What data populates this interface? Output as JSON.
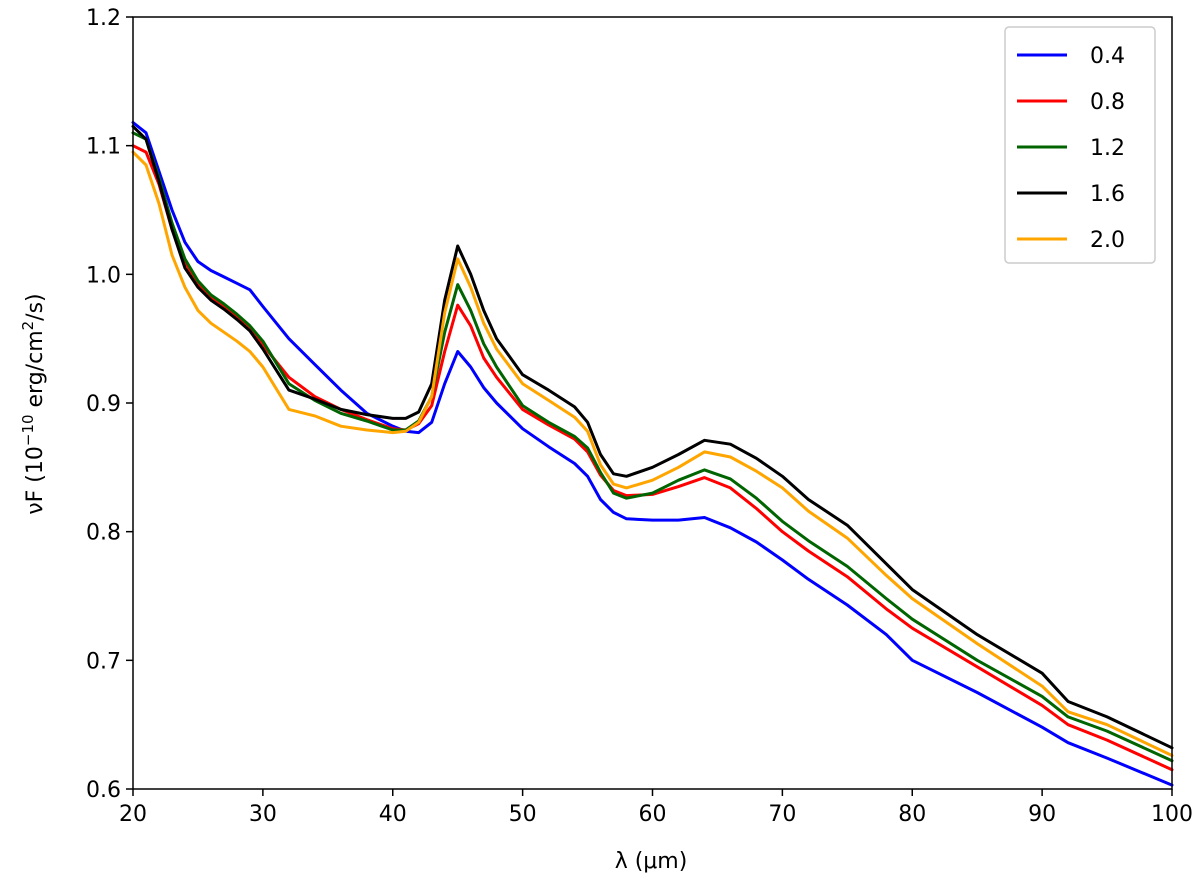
{
  "chart_data": {
    "type": "line",
    "title": "",
    "xlabel": "λ (μm)",
    "ylabel_main": "νF (10",
    "ylabel_exp": "−10",
    "ylabel_mid": " erg/cm",
    "ylabel_exp2": "2",
    "ylabel_end": "/s)",
    "xlim": [
      20,
      100
    ],
    "ylim": [
      0.6,
      1.2
    ],
    "xticks": [
      20,
      30,
      40,
      50,
      60,
      70,
      80,
      90,
      100
    ],
    "xtick_labels": [
      "20",
      "30",
      "40",
      "50",
      "60",
      "70",
      "80",
      "90",
      "100"
    ],
    "yticks": [
      0.6,
      0.7,
      0.8,
      0.9,
      1.0,
      1.1,
      1.2
    ],
    "ytick_labels": [
      "0.6",
      "0.7",
      "0.8",
      "0.9",
      "1.0",
      "1.1",
      "1.2"
    ],
    "grid": false,
    "legend_position": "top-right",
    "series": [
      {
        "name": "0.4",
        "color": "#0000ff",
        "x": [
          20,
          21,
          22,
          23,
          24,
          25,
          26,
          27,
          28,
          29,
          30,
          32,
          34,
          36,
          38,
          40,
          41,
          42,
          43,
          44,
          45,
          46,
          47,
          48,
          50,
          52,
          54,
          55,
          56,
          57,
          58,
          60,
          62,
          64,
          66,
          68,
          70,
          72,
          75,
          78,
          80,
          85,
          90,
          92,
          95,
          100
        ],
        "y": [
          1.118,
          1.11,
          1.08,
          1.05,
          1.025,
          1.01,
          1.003,
          0.998,
          0.993,
          0.988,
          0.975,
          0.95,
          0.93,
          0.91,
          0.892,
          0.882,
          0.878,
          0.877,
          0.885,
          0.915,
          0.94,
          0.928,
          0.912,
          0.9,
          0.88,
          0.866,
          0.853,
          0.843,
          0.825,
          0.815,
          0.81,
          0.809,
          0.809,
          0.811,
          0.803,
          0.792,
          0.778,
          0.763,
          0.743,
          0.72,
          0.7,
          0.675,
          0.648,
          0.636,
          0.624,
          0.603
        ]
      },
      {
        "name": "0.8",
        "color": "#ff0000",
        "x": [
          20,
          21,
          22,
          23,
          24,
          25,
          26,
          27,
          28,
          29,
          30,
          32,
          34,
          36,
          38,
          40,
          41,
          42,
          43,
          44,
          45,
          46,
          47,
          48,
          50,
          52,
          54,
          55,
          56,
          57,
          58,
          60,
          62,
          64,
          66,
          68,
          70,
          72,
          75,
          78,
          80,
          85,
          90,
          92,
          95,
          100
        ],
        "y": [
          1.1,
          1.095,
          1.07,
          1.035,
          1.01,
          0.992,
          0.982,
          0.975,
          0.967,
          0.957,
          0.945,
          0.92,
          0.905,
          0.895,
          0.887,
          0.88,
          0.879,
          0.884,
          0.898,
          0.94,
          0.976,
          0.96,
          0.935,
          0.92,
          0.895,
          0.883,
          0.872,
          0.862,
          0.844,
          0.832,
          0.828,
          0.829,
          0.835,
          0.842,
          0.834,
          0.818,
          0.8,
          0.785,
          0.765,
          0.74,
          0.725,
          0.695,
          0.665,
          0.65,
          0.638,
          0.615
        ]
      },
      {
        "name": "1.2",
        "color": "#006400",
        "x": [
          20,
          21,
          22,
          23,
          24,
          25,
          26,
          27,
          28,
          29,
          30,
          32,
          34,
          36,
          38,
          40,
          41,
          42,
          43,
          44,
          45,
          46,
          47,
          48,
          50,
          52,
          54,
          55,
          56,
          57,
          58,
          60,
          62,
          64,
          66,
          68,
          70,
          72,
          75,
          78,
          80,
          85,
          90,
          92,
          95,
          100
        ],
        "y": [
          1.11,
          1.105,
          1.075,
          1.04,
          1.012,
          0.995,
          0.984,
          0.977,
          0.969,
          0.96,
          0.948,
          0.915,
          0.902,
          0.892,
          0.886,
          0.879,
          0.879,
          0.886,
          0.905,
          0.955,
          0.992,
          0.972,
          0.946,
          0.928,
          0.898,
          0.885,
          0.874,
          0.865,
          0.846,
          0.83,
          0.826,
          0.83,
          0.84,
          0.848,
          0.841,
          0.826,
          0.808,
          0.793,
          0.773,
          0.748,
          0.732,
          0.7,
          0.672,
          0.656,
          0.645,
          0.622
        ]
      },
      {
        "name": "1.6",
        "color": "#000000",
        "x": [
          20,
          21,
          22,
          23,
          24,
          25,
          26,
          27,
          28,
          29,
          30,
          32,
          34,
          36,
          38,
          40,
          41,
          42,
          43,
          44,
          45,
          46,
          47,
          48,
          50,
          52,
          54,
          55,
          56,
          57,
          58,
          60,
          62,
          64,
          66,
          68,
          70,
          72,
          75,
          78,
          80,
          85,
          90,
          92,
          95,
          100
        ],
        "y": [
          1.115,
          1.105,
          1.072,
          1.035,
          1.005,
          0.99,
          0.98,
          0.973,
          0.965,
          0.956,
          0.942,
          0.91,
          0.903,
          0.895,
          0.891,
          0.888,
          0.888,
          0.893,
          0.915,
          0.98,
          1.022,
          1.0,
          0.972,
          0.95,
          0.922,
          0.91,
          0.897,
          0.885,
          0.86,
          0.845,
          0.843,
          0.85,
          0.86,
          0.871,
          0.868,
          0.857,
          0.843,
          0.825,
          0.805,
          0.775,
          0.755,
          0.72,
          0.69,
          0.668,
          0.656,
          0.632
        ]
      },
      {
        "name": "2.0",
        "color": "#ffa500",
        "x": [
          20,
          21,
          22,
          23,
          24,
          25,
          26,
          27,
          28,
          29,
          30,
          32,
          34,
          36,
          38,
          40,
          41,
          42,
          43,
          44,
          45,
          46,
          47,
          48,
          50,
          52,
          54,
          55,
          56,
          57,
          58,
          60,
          62,
          64,
          66,
          68,
          70,
          72,
          75,
          78,
          80,
          85,
          90,
          92,
          95,
          100
        ],
        "y": [
          1.095,
          1.085,
          1.055,
          1.015,
          0.99,
          0.972,
          0.962,
          0.955,
          0.948,
          0.94,
          0.928,
          0.895,
          0.89,
          0.882,
          0.879,
          0.877,
          0.878,
          0.885,
          0.905,
          0.97,
          1.012,
          0.99,
          0.962,
          0.942,
          0.915,
          0.902,
          0.889,
          0.878,
          0.852,
          0.837,
          0.834,
          0.84,
          0.85,
          0.862,
          0.858,
          0.847,
          0.834,
          0.816,
          0.795,
          0.766,
          0.748,
          0.713,
          0.68,
          0.66,
          0.65,
          0.626
        ]
      }
    ]
  }
}
